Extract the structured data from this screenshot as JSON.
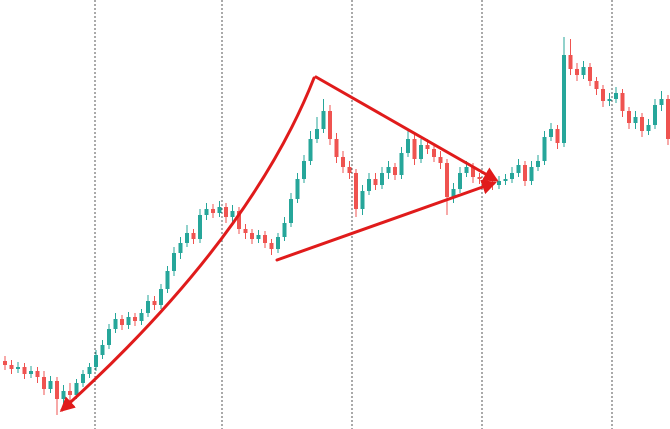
{
  "chart_data": {
    "type": "candlestick",
    "up_color": "#26a69a",
    "down_color": "#ef5350",
    "ylim": [
      0,
      429
    ],
    "open": [
      68,
      64,
      60,
      62,
      55,
      58,
      52,
      40,
      48,
      30,
      38,
      34,
      46,
      55,
      62,
      74,
      84,
      100,
      110,
      104,
      112,
      108,
      116,
      128,
      124,
      140,
      158,
      176,
      186,
      196,
      190,
      214,
      220,
      216,
      222,
      212,
      218,
      200,
      196,
      190,
      194,
      186,
      180,
      192,
      206,
      230,
      250,
      268,
      290,
      300,
      318,
      290,
      272,
      262,
      256,
      220,
      238,
      250,
      244,
      256,
      262,
      254,
      276,
      290,
      270,
      284,
      280,
      272,
      266,
      232,
      240,
      256,
      262,
      252,
      250,
      246,
      244,
      248,
      250,
      256,
      264,
      248,
      262,
      268,
      292,
      300,
      286,
      374,
      360,
      354,
      362,
      348,
      340,
      328,
      330,
      336,
      318,
      306,
      312,
      298,
      304,
      324,
      330
    ],
    "high": [
      73,
      69,
      67,
      66,
      63,
      62,
      58,
      53,
      52,
      44,
      46,
      50,
      59,
      66,
      79,
      89,
      105,
      116,
      114,
      117,
      116,
      120,
      134,
      133,
      145,
      163,
      182,
      192,
      204,
      200,
      220,
      226,
      225,
      228,
      226,
      224,
      222,
      205,
      200,
      199,
      198,
      190,
      196,
      212,
      236,
      256,
      274,
      298,
      312,
      330,
      324,
      296,
      278,
      268,
      260,
      244,
      256,
      256,
      262,
      268,
      266,
      282,
      300,
      296,
      290,
      290,
      286,
      278,
      270,
      246,
      262,
      268,
      266,
      256,
      255,
      250,
      253,
      255,
      262,
      270,
      268,
      268,
      274,
      298,
      306,
      304,
      392,
      390,
      366,
      368,
      366,
      352,
      344,
      336,
      342,
      340,
      322,
      318,
      316,
      310,
      330,
      338,
      334
    ],
    "low": [
      59,
      55,
      56,
      50,
      51,
      46,
      34,
      36,
      14,
      22,
      28,
      30,
      42,
      51,
      58,
      70,
      80,
      96,
      99,
      100,
      103,
      104,
      112,
      119,
      120,
      136,
      153,
      170,
      182,
      185,
      186,
      209,
      211,
      212,
      206,
      207,
      195,
      190,
      185,
      186,
      181,
      174,
      176,
      188,
      202,
      226,
      246,
      264,
      286,
      296,
      284,
      266,
      256,
      250,
      212,
      214,
      234,
      239,
      240,
      250,
      249,
      250,
      272,
      264,
      266,
      275,
      267,
      260,
      214,
      226,
      236,
      252,
      246,
      245,
      241,
      239,
      240,
      244,
      246,
      252,
      243,
      244,
      258,
      264,
      288,
      280,
      282,
      354,
      348,
      350,
      343,
      334,
      322,
      323,
      326,
      312,
      300,
      300,
      292,
      294,
      300,
      318,
      284
    ],
    "close": [
      64,
      60,
      62,
      55,
      58,
      52,
      40,
      48,
      30,
      38,
      34,
      46,
      55,
      62,
      74,
      84,
      100,
      110,
      104,
      112,
      108,
      116,
      128,
      124,
      140,
      158,
      176,
      186,
      196,
      190,
      214,
      220,
      216,
      222,
      212,
      218,
      200,
      196,
      190,
      194,
      186,
      180,
      192,
      206,
      230,
      250,
      268,
      290,
      300,
      318,
      290,
      272,
      262,
      256,
      220,
      238,
      250,
      244,
      256,
      262,
      254,
      276,
      290,
      270,
      284,
      280,
      272,
      266,
      232,
      240,
      256,
      262,
      252,
      250,
      246,
      244,
      248,
      250,
      256,
      264,
      248,
      262,
      268,
      292,
      300,
      286,
      374,
      360,
      354,
      362,
      348,
      340,
      328,
      330,
      336,
      318,
      306,
      312,
      298,
      304,
      324,
      330,
      290
    ]
  }
}
